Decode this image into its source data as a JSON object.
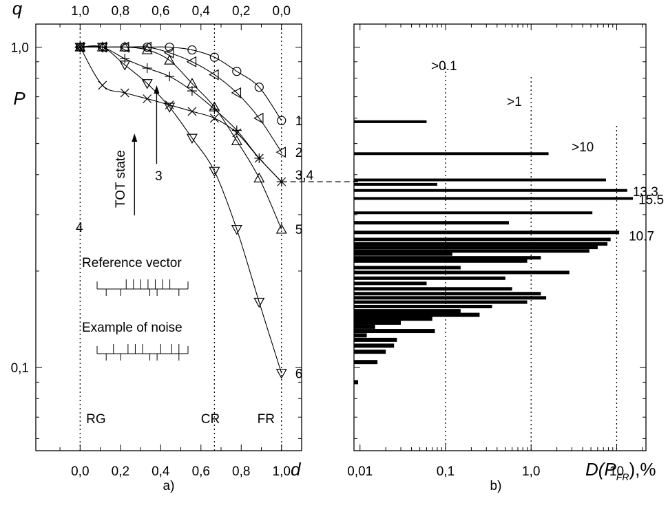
{
  "chart_data": [
    {
      "panel": "a)",
      "type": "line",
      "x_axis_label": "d",
      "top_axis_label": "q",
      "y_axis_label": "P",
      "x_range": [
        -0.22,
        1.1
      ],
      "y_range": [
        0.055,
        1.18
      ],
      "y_scale": "log",
      "x_tick_labels": [
        "0,0",
        "0,2",
        "0,4",
        "0,6",
        "0,8",
        "1,0"
      ],
      "x_tick_values": [
        0,
        0.2,
        0.4,
        0.6,
        0.8,
        1.0
      ],
      "top_tick_labels": [
        "1,0",
        "0,8",
        "0,6",
        "0,4",
        "0,2",
        "0,0"
      ],
      "y_tick_labels": [
        "1,0",
        "0,1"
      ],
      "y_tick_values": [
        1.0,
        0.1
      ],
      "vlines": [
        0,
        0.667,
        1.0
      ],
      "region_labels": [
        {
          "text": "RG",
          "x": 0.03
        },
        {
          "text": "CR",
          "x": 0.6
        },
        {
          "text": "FR",
          "x": 0.88
        }
      ],
      "series": [
        {
          "name": "1",
          "marker": "circle",
          "x": [
            0,
            0.111,
            0.222,
            0.333,
            0.444,
            0.556,
            0.667,
            0.778,
            0.889,
            1.0
          ],
          "y": [
            1.0,
            1.0,
            1.0,
            1.0,
            1.0,
            0.98,
            0.93,
            0.84,
            0.75,
            0.59
          ]
        },
        {
          "name": "2",
          "marker": "triangle-left",
          "x": [
            0,
            0.111,
            0.222,
            0.333,
            0.444,
            0.556,
            0.667,
            0.778,
            0.889,
            1.0
          ],
          "y": [
            1.0,
            1.0,
            1.0,
            1.0,
            0.96,
            0.9,
            0.82,
            0.72,
            0.6,
            0.47
          ]
        },
        {
          "name": "3",
          "marker": "plus",
          "x": [
            0,
            0.111,
            0.222,
            0.333,
            0.444,
            0.556,
            0.667,
            0.778,
            0.889,
            1.0
          ],
          "y": [
            1.0,
            1.0,
            0.92,
            0.86,
            0.81,
            0.73,
            0.64,
            0.55,
            0.45,
            0.38
          ]
        },
        {
          "name": "4",
          "marker": "x",
          "x": [
            0,
            0.111,
            0.222,
            0.333,
            0.444,
            0.556,
            0.667,
            0.778,
            0.889,
            1.0
          ],
          "y": [
            1.0,
            0.76,
            0.72,
            0.69,
            0.66,
            0.63,
            0.6,
            0.54,
            0.45,
            0.38
          ]
        },
        {
          "name": "5",
          "marker": "triangle-up",
          "x": [
            0,
            0.111,
            0.222,
            0.333,
            0.444,
            0.556,
            0.667,
            0.778,
            0.889,
            1.0
          ],
          "y": [
            1.0,
            1.0,
            1.0,
            0.98,
            0.91,
            0.77,
            0.65,
            0.51,
            0.39,
            0.27
          ]
        },
        {
          "name": "6",
          "marker": "triangle-down",
          "x": [
            0,
            0.111,
            0.222,
            0.333,
            0.444,
            0.556,
            0.667,
            0.778,
            0.889,
            1.0
          ],
          "y": [
            1.0,
            1.0,
            0.88,
            0.77,
            0.65,
            0.52,
            0.41,
            0.27,
            0.16,
            0.096
          ]
        }
      ],
      "curve_labels": [
        {
          "text": "1",
          "ref": 0
        },
        {
          "text": "2",
          "ref": 1
        },
        {
          "text": "3,4",
          "ref": 2
        },
        {
          "text": "5",
          "ref": 4
        },
        {
          "text": "6",
          "ref": 5
        }
      ],
      "annotations": [
        "TOT state",
        "3",
        "4",
        "Reference vector",
        "Example of noise"
      ],
      "inset_scale_ticks": 10,
      "reference_vector_marks": [
        0.32,
        0.4,
        0.48,
        0.56,
        0.64,
        0.72,
        0.8
      ],
      "noise_marks": [
        0.18,
        0.34,
        0.42,
        0.5,
        0.7,
        0.82,
        0.9
      ]
    },
    {
      "panel": "b)",
      "type": "bar",
      "orientation": "horizontal",
      "x_axis_label": "D(P",
      "x_axis_label_subscript": "FR",
      "x_axis_label_suffix": "),%",
      "x_scale": "log",
      "x_range": [
        0.0085,
        22
      ],
      "x_tick_labels": [
        "0,01",
        "0,1",
        "1,0",
        "10"
      ],
      "x_tick_values": [
        0.01,
        0.1,
        1.0,
        10
      ],
      "vlines": [
        0.1,
        1.0,
        10
      ],
      "threshold_labels": [
        ">0.1",
        ">1",
        ">10"
      ],
      "bar_labels": [
        {
          "text": "13.3",
          "value": 13.3,
          "p": 0.355
        },
        {
          "text": "15.5",
          "value": 15.5,
          "p": 0.335
        },
        {
          "text": "10.7",
          "value": 10.7,
          "p": 0.258
        }
      ],
      "bars": [
        {
          "p": 0.585,
          "value": 0.06
        },
        {
          "p": 0.465,
          "value": 1.6
        },
        {
          "p": 0.385,
          "value": 7.5
        },
        {
          "p": 0.373,
          "value": 0.08
        },
        {
          "p": 0.357,
          "value": 13.3
        },
        {
          "p": 0.337,
          "value": 15.5
        },
        {
          "p": 0.304,
          "value": 5.2
        },
        {
          "p": 0.283,
          "value": 0.55
        },
        {
          "p": 0.264,
          "value": 10.7
        },
        {
          "p": 0.251,
          "value": 8.5
        },
        {
          "p": 0.243,
          "value": 7.8
        },
        {
          "p": 0.237,
          "value": 6.0
        },
        {
          "p": 0.231,
          "value": 4.8
        },
        {
          "p": 0.226,
          "value": 0.12
        },
        {
          "p": 0.22,
          "value": 1.3
        },
        {
          "p": 0.215,
          "value": 0.9
        },
        {
          "p": 0.205,
          "value": 0.15
        },
        {
          "p": 0.198,
          "value": 2.8
        },
        {
          "p": 0.19,
          "value": 0.5
        },
        {
          "p": 0.183,
          "value": 0.06
        },
        {
          "p": 0.176,
          "value": 0.6
        },
        {
          "p": 0.17,
          "value": 1.3
        },
        {
          "p": 0.165,
          "value": 1.5
        },
        {
          "p": 0.16,
          "value": 0.9
        },
        {
          "p": 0.155,
          "value": 0.35
        },
        {
          "p": 0.15,
          "value": 0.15
        },
        {
          "p": 0.146,
          "value": 0.25
        },
        {
          "p": 0.142,
          "value": 0.07
        },
        {
          "p": 0.138,
          "value": 0.03
        },
        {
          "p": 0.134,
          "value": 0.015
        },
        {
          "p": 0.13,
          "value": 0.075
        },
        {
          "p": 0.126,
          "value": 0.012
        },
        {
          "p": 0.122,
          "value": 0.027
        },
        {
          "p": 0.117,
          "value": 0.025
        },
        {
          "p": 0.112,
          "value": 0.02
        },
        {
          "p": 0.104,
          "value": 0.016
        },
        {
          "p": 0.09,
          "value": 0.0095
        }
      ],
      "connector": {
        "from_series": "3,4",
        "p": 0.38
      }
    }
  ]
}
